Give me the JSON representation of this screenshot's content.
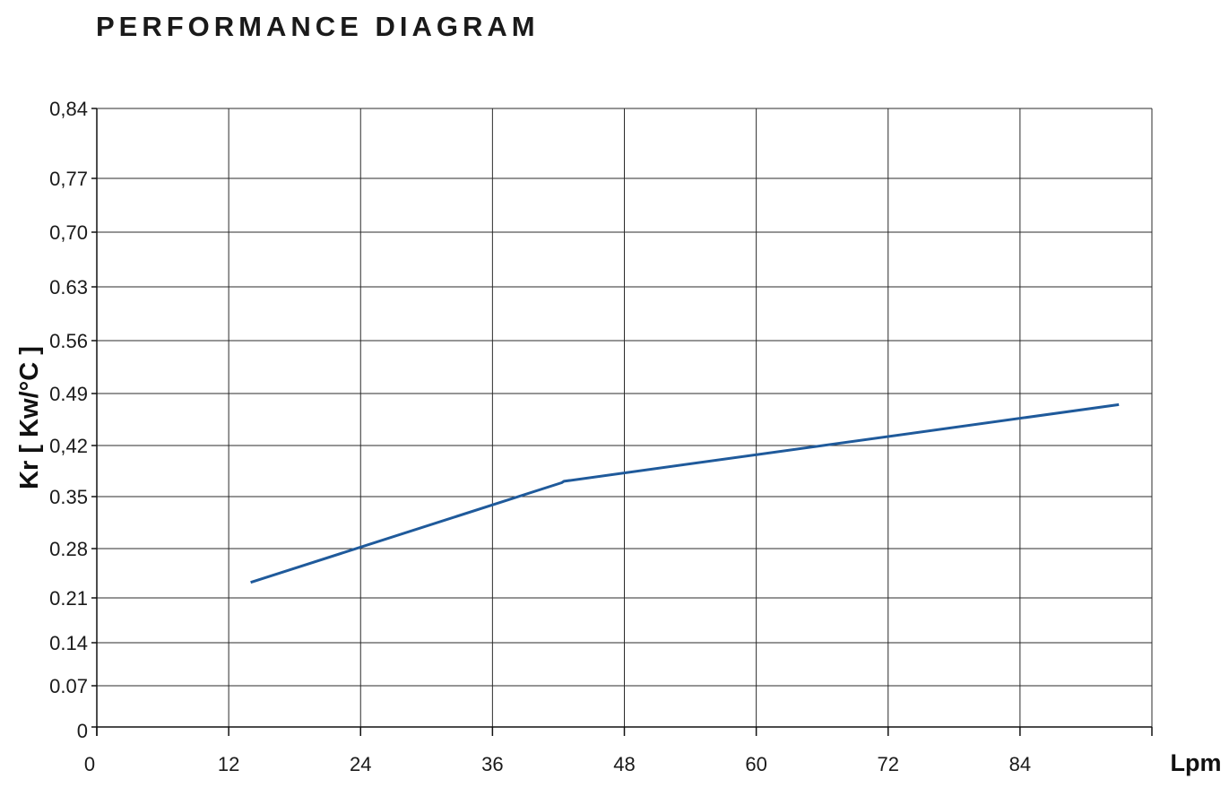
{
  "chart_data": {
    "type": "line",
    "title": "PERFORMANCE DIAGRAM",
    "xlabel": "Lpm",
    "ylabel": "Kr [ Kw/°C ]",
    "xlim": [
      0,
      96
    ],
    "x_ticks": [
      "0",
      "12",
      "24",
      "36",
      "48",
      "60",
      "72",
      "84"
    ],
    "x_tick_values": [
      0,
      12,
      24,
      36,
      48,
      60,
      72,
      84
    ],
    "y_ticks": [
      "0",
      "0.07",
      "0.14",
      "0.21",
      "0.28",
      "0.35",
      "0,42",
      "0.49",
      "0.56",
      "0.63",
      "0,70",
      "0,77",
      "0,84"
    ],
    "grid": true,
    "color": "#1f5a9b",
    "series": [
      {
        "x": [
          14,
          42.3,
          42.5,
          93
        ],
        "y": [
          0.232,
          0.369,
          0.371,
          0.475
        ]
      }
    ]
  }
}
